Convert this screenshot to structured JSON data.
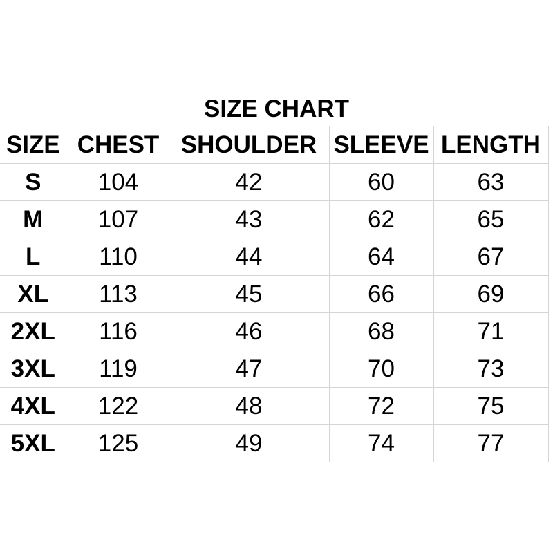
{
  "title": "SIZE CHART",
  "headers": [
    "SIZE",
    "CHEST",
    "SHOULDER",
    "SLEEVE",
    "LENGTH"
  ],
  "rows": [
    [
      "S",
      "104",
      "42",
      "60",
      "63"
    ],
    [
      "M",
      "107",
      "43",
      "62",
      "65"
    ],
    [
      "L",
      "110",
      "44",
      "64",
      "67"
    ],
    [
      "XL",
      "113",
      "45",
      "66",
      "69"
    ],
    [
      "2XL",
      "116",
      "46",
      "68",
      "71"
    ],
    [
      "3XL",
      "119",
      "47",
      "70",
      "73"
    ],
    [
      "4XL",
      "122",
      "48",
      "72",
      "75"
    ],
    [
      "5XL",
      "125",
      "49",
      "74",
      "77"
    ]
  ]
}
